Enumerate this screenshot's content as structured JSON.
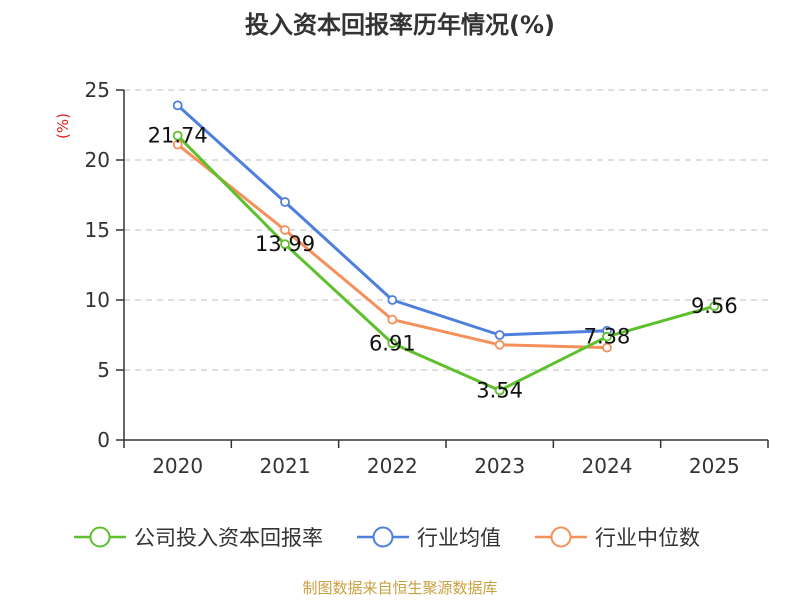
{
  "chart_data": {
    "type": "line",
    "title": "投入资本回报率历年情况(%)",
    "ylabel": "(%)",
    "xlabel": "",
    "categories": [
      "2020",
      "2021",
      "2022",
      "2023",
      "2024",
      "2025"
    ],
    "ylim": [
      0,
      25
    ],
    "yticks": [
      0,
      5,
      10,
      15,
      20,
      25
    ],
    "grid": "horizontal-dashed",
    "legend_position": "bottom",
    "series": [
      {
        "name": "公司投入资本回报率",
        "color": "#5fc02d",
        "values": [
          21.74,
          13.99,
          6.91,
          3.54,
          7.38,
          9.56
        ],
        "labels": true
      },
      {
        "name": "行业均值",
        "color": "#4e7fdd",
        "values": [
          23.9,
          17.0,
          10.0,
          7.5,
          7.8,
          null
        ],
        "labels": false
      },
      {
        "name": "行业中位数",
        "color": "#f5905a",
        "values": [
          21.1,
          15.0,
          8.6,
          6.8,
          6.6,
          null
        ],
        "labels": false
      }
    ]
  },
  "source_text": "制图数据来自恒生聚源数据库",
  "colors": {
    "axis": "#333333",
    "grid": "#cccccc",
    "ylabel": "#e02020",
    "source": "#c8a040"
  }
}
